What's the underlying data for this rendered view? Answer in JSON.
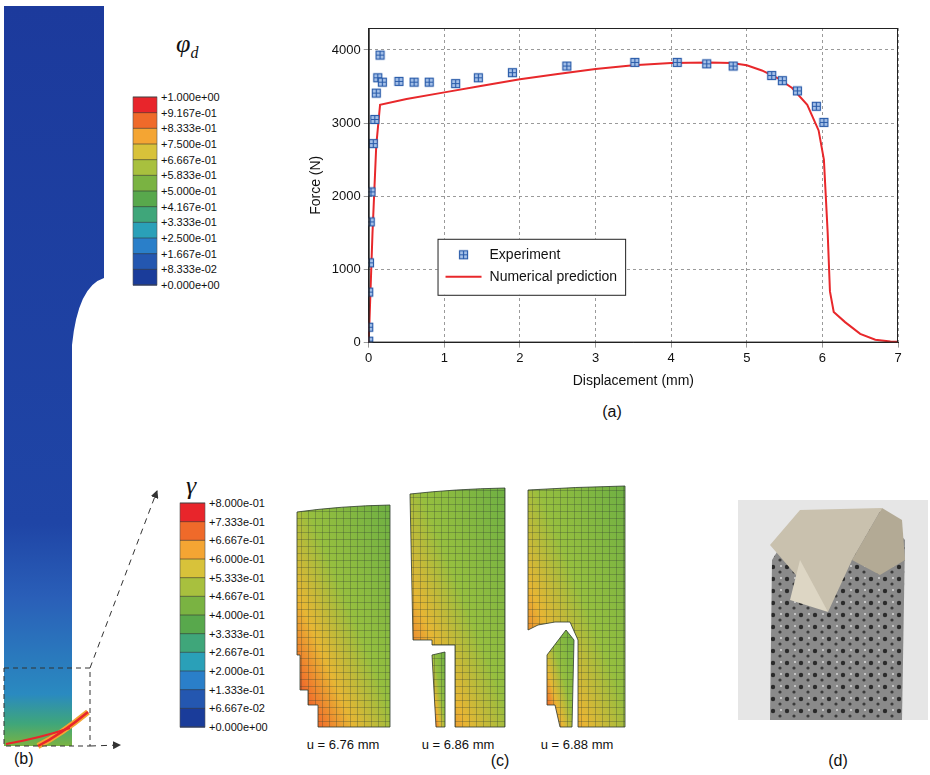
{
  "panels": {
    "a": "(a)",
    "b": "(b)",
    "c": "(c)",
    "d": "(d)"
  },
  "chart_data": {
    "type": "scatter",
    "xlabel": "Displacement (mm)",
    "ylabel": "Force (N)",
    "xlim": [
      0,
      7
    ],
    "xticks": [
      0,
      1,
      2,
      3,
      4,
      5,
      6,
      7
    ],
    "ylim": [
      0,
      4300
    ],
    "yticks": [
      0,
      1000,
      2000,
      3000,
      4000
    ],
    "grid": true,
    "legend": "lower left",
    "series": [
      {
        "name": "Experiment",
        "type": "scatter",
        "marker": "square_cross",
        "color": "#2a5caa",
        "x": [
          0,
          0,
          0,
          0.01,
          0.02,
          0.03,
          0.06,
          0.08,
          0.1,
          0.12,
          0.15,
          0.18,
          0.4,
          0.6,
          0.8,
          1.15,
          1.45,
          1.9,
          2.62,
          3.52,
          4.08,
          4.47,
          4.82,
          5.33,
          5.47,
          5.67,
          5.92,
          6.02
        ],
        "values": [
          20,
          210,
          690,
          1090,
          1650,
          2060,
          2720,
          3050,
          3410,
          3620,
          3930,
          3560,
          3570,
          3560,
          3560,
          3540,
          3620,
          3690,
          3780,
          3830,
          3830,
          3810,
          3780,
          3650,
          3580,
          3440,
          3230,
          3010
        ]
      },
      {
        "name": "Numerical prediction",
        "type": "line",
        "line_style": "solid",
        "color": "#e8282b",
        "x": [
          0,
          0.05,
          0.1,
          0.15,
          0.5,
          1,
          1.5,
          2,
          2.5,
          3,
          3.5,
          4,
          4.5,
          4.8,
          5,
          5.2,
          5.4,
          5.6,
          5.8,
          5.95,
          6.02,
          6.07,
          6.1,
          6.15,
          6.3,
          6.5,
          6.7,
          6.9,
          7
        ],
        "values": [
          0,
          1500,
          2700,
          3250,
          3330,
          3420,
          3510,
          3600,
          3670,
          3740,
          3790,
          3820,
          3830,
          3820,
          3790,
          3720,
          3620,
          3480,
          3250,
          2900,
          2500,
          1500,
          700,
          420,
          280,
          120,
          40,
          15,
          10
        ]
      }
    ]
  },
  "contour_b": {
    "colorbar": {
      "title": "φ",
      "title_subscript": "d",
      "range": [
        0,
        1
      ],
      "ticks": [
        {
          "value": 1,
          "label": "+1.000e+00"
        },
        {
          "value": 0.9167,
          "label": "+9.167e-01"
        },
        {
          "value": 0.8333,
          "label": "+8.333e-01"
        },
        {
          "value": 0.75,
          "label": "+7.500e-01"
        },
        {
          "value": 0.6667,
          "label": "+6.667e-01"
        },
        {
          "value": 0.5833,
          "label": "+5.833e-01"
        },
        {
          "value": 0.5,
          "label": "+5.000e-01"
        },
        {
          "value": 0.4167,
          "label": "+4.167e-01"
        },
        {
          "value": 0.3333,
          "label": "+3.333e-01"
        },
        {
          "value": 0.25,
          "label": "+2.500e-01"
        },
        {
          "value": 0.1667,
          "label": "+1.667e-01"
        },
        {
          "value": 0.08333,
          "label": "+8.333e-02"
        },
        {
          "value": 0,
          "label": "+0.000e+00"
        }
      ]
    }
  },
  "contour_c": {
    "colorbar": {
      "title": "γ",
      "range": [
        0,
        0.8
      ],
      "ticks": [
        {
          "value": 0.8,
          "label": "+8.000e-01"
        },
        {
          "value": 0.7333,
          "label": "+7.333e-01"
        },
        {
          "value": 0.6667,
          "label": "+6.667e-01"
        },
        {
          "value": 0.6,
          "label": "+6.000e-01"
        },
        {
          "value": 0.5333,
          "label": "+5.333e-01"
        },
        {
          "value": 0.4667,
          "label": "+4.667e-01"
        },
        {
          "value": 0.4,
          "label": "+4.000e-01"
        },
        {
          "value": 0.3333,
          "label": "+3.333e-01"
        },
        {
          "value": 0.2667,
          "label": "+2.667e-01"
        },
        {
          "value": 0.2,
          "label": "+2.000e-01"
        },
        {
          "value": 0.1333,
          "label": "+1.333e-01"
        },
        {
          "value": 0.06667,
          "label": "+6.667e-02"
        },
        {
          "value": 0,
          "label": "+0.000e+00"
        }
      ]
    },
    "snapshots": [
      {
        "caption": "u = 6.76 mm"
      },
      {
        "caption": "u = 6.86 mm"
      },
      {
        "caption": "u = 6.88 mm"
      }
    ]
  }
}
